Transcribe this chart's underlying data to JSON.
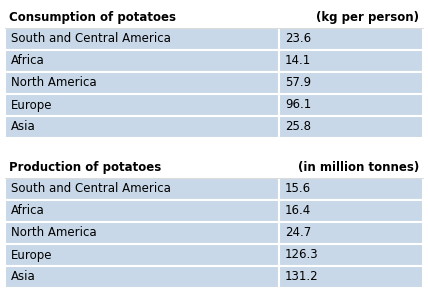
{
  "consumption_header": [
    "Consumption of potatoes",
    "(kg per person)"
  ],
  "consumption_rows": [
    [
      "South and Central America",
      "23.6"
    ],
    [
      "Africa",
      "14.1"
    ],
    [
      "North America",
      "57.9"
    ],
    [
      "Europe",
      "96.1"
    ],
    [
      "Asia",
      "25.8"
    ]
  ],
  "production_header": [
    "Production of potatoes",
    "(in million tonnes)"
  ],
  "production_rows": [
    [
      "South and Central America",
      "15.6"
    ],
    [
      "Africa",
      "16.4"
    ],
    [
      "North America",
      "24.7"
    ],
    [
      "Europe",
      "126.3"
    ],
    [
      "Asia",
      "131.2"
    ]
  ],
  "row_bg": "#c8d8e8",
  "border_color": "#ffffff",
  "header_font_size": 8.5,
  "row_font_size": 8.5,
  "fig_bg": "#ffffff",
  "col_split": 0.655
}
